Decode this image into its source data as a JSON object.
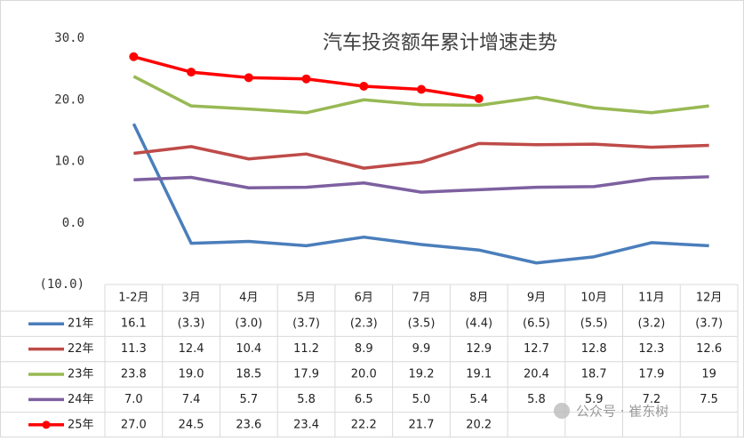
{
  "chart_data": {
    "type": "line",
    "title": "汽车投资额年累计增速走势",
    "categories": [
      "1-2月",
      "3月",
      "4月",
      "5月",
      "6月",
      "7月",
      "8月",
      "9月",
      "10月",
      "11月",
      "12月"
    ],
    "ylim": [
      -10,
      30
    ],
    "yticks": [
      {
        "value": 30,
        "label": "30.0"
      },
      {
        "value": 20,
        "label": "20.0"
      },
      {
        "value": 10,
        "label": "10.0"
      },
      {
        "value": 0,
        "label": "0.0"
      },
      {
        "value": -10,
        "label": "(10.0)"
      }
    ],
    "grid": false,
    "series": [
      {
        "name": "21年",
        "color": "#4a7ebb",
        "markers": false,
        "values": [
          16.1,
          -3.3,
          -3.0,
          -3.7,
          -2.3,
          -3.5,
          -4.4,
          -6.5,
          -5.5,
          -3.2,
          -3.7
        ],
        "value_labels": [
          "16.1",
          "(3.3)",
          "(3.0)",
          "(3.7)",
          "(2.3)",
          "(3.5)",
          "(4.4)",
          "(6.5)",
          "(5.5)",
          "(3.2)",
          "(3.7)"
        ]
      },
      {
        "name": "22年",
        "color": "#be4b48",
        "markers": false,
        "values": [
          11.3,
          12.4,
          10.4,
          11.2,
          8.9,
          9.9,
          12.9,
          12.7,
          12.8,
          12.3,
          12.6
        ],
        "value_labels": [
          "11.3",
          "12.4",
          "10.4",
          "11.2",
          "8.9",
          "9.9",
          "12.9",
          "12.7",
          "12.8",
          "12.3",
          "12.6"
        ]
      },
      {
        "name": "23年",
        "color": "#98b954",
        "markers": false,
        "values": [
          23.8,
          19.0,
          18.5,
          17.9,
          20.0,
          19.2,
          19.1,
          20.4,
          18.7,
          17.9,
          19
        ],
        "value_labels": [
          "23.8",
          "19.0",
          "18.5",
          "17.9",
          "20.0",
          "19.2",
          "19.1",
          "20.4",
          "18.7",
          "17.9",
          "19"
        ]
      },
      {
        "name": "24年",
        "color": "#7d60a0",
        "markers": false,
        "values": [
          7.0,
          7.4,
          5.7,
          5.8,
          6.5,
          5.0,
          5.4,
          5.8,
          5.9,
          7.2,
          7.5
        ],
        "value_labels": [
          "7.0",
          "7.4",
          "5.7",
          "5.8",
          "6.5",
          "5.0",
          "5.4",
          "5.8",
          "5.9",
          "7.2",
          "7.5"
        ]
      },
      {
        "name": "25年",
        "color": "#ff0000",
        "markers": true,
        "values": [
          27.0,
          24.5,
          23.6,
          23.4,
          22.2,
          21.7,
          20.2,
          null,
          null,
          null,
          null
        ],
        "value_labels": [
          "27.0",
          "24.5",
          "23.6",
          "23.4",
          "22.2",
          "21.7",
          "20.2",
          null,
          null,
          null,
          null
        ]
      }
    ],
    "watermark": "公众号 · 崔东树"
  }
}
